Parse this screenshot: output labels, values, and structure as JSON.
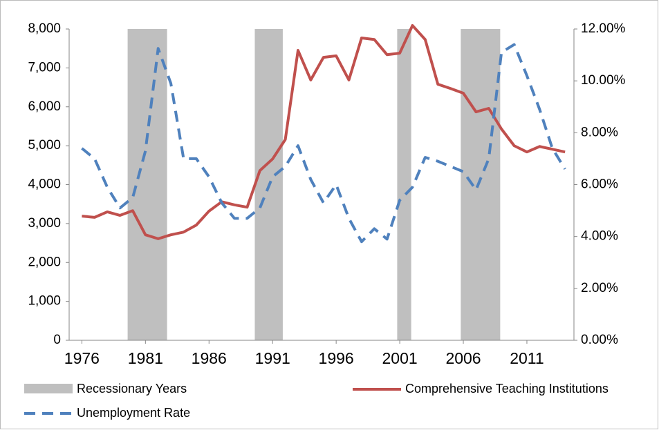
{
  "chart_data": {
    "type": "line",
    "x": [
      1976,
      1977,
      1978,
      1979,
      1980,
      1981,
      1982,
      1983,
      1984,
      1985,
      1986,
      1987,
      1988,
      1989,
      1990,
      1991,
      1992,
      1993,
      1994,
      1995,
      1996,
      1997,
      1998,
      1999,
      2000,
      2001,
      2002,
      2003,
      2004,
      2005,
      2006,
      2007,
      2008,
      2009,
      2010,
      2011,
      2012,
      2013,
      2014
    ],
    "xlim": [
      1975,
      2014.7
    ],
    "xticks": [
      1976,
      1981,
      1986,
      1991,
      1996,
      2001,
      2006,
      2011
    ],
    "ylim": [
      0,
      8000
    ],
    "yticks": [
      0,
      {
        "value": 1000,
        "label": "1,000"
      },
      {
        "value": 2000,
        "label": "2,000"
      },
      {
        "value": 3000,
        "label": "3,000"
      },
      {
        "value": 4000,
        "label": "4,000"
      },
      {
        "value": 5000,
        "label": "5,000"
      },
      {
        "value": 6000,
        "label": "6,000"
      },
      {
        "value": 7000,
        "label": "7,000"
      },
      {
        "value": 8000,
        "label": "8,000"
      }
    ],
    "y2lim": [
      0,
      12
    ],
    "y2ticks": [
      {
        "value": 0,
        "label": "0.00%"
      },
      {
        "value": 2,
        "label": "2.00%"
      },
      {
        "value": 4,
        "label": "4.00%"
      },
      {
        "value": 6,
        "label": "6.00%"
      },
      {
        "value": 8,
        "label": "8.00%"
      },
      {
        "value": 10,
        "label": "10.00%"
      },
      {
        "value": 12,
        "label": "12.00%"
      }
    ],
    "recessions": {
      "name": "Recessionary Years",
      "color": "#bfbfbf",
      "spans": [
        [
          1979.6,
          1982.7
        ],
        [
          1989.6,
          1991.8
        ],
        [
          2000.8,
          2001.9
        ],
        [
          2005.8,
          2008.9
        ]
      ]
    },
    "series": [
      {
        "name": "Comprehensive Teaching Institutions",
        "color": "#c0504d",
        "values": [
          3190,
          3160,
          3300,
          3210,
          3330,
          2710,
          2610,
          2710,
          2780,
          2960,
          3320,
          3560,
          3480,
          3420,
          4360,
          4660,
          5160,
          7450,
          6690,
          7270,
          7310,
          6690,
          7770,
          7730,
          7340,
          7380,
          8090,
          7730,
          6580,
          6470,
          6350,
          5870,
          5960,
          5430,
          5000,
          4840,
          4980,
          4910,
          4840
        ]
      },
      {
        "name": "Unemployment Rate",
        "color": "#4f81bd",
        "axis": "y2",
        "dashed": true,
        "values": [
          7.4,
          7.0,
          5.9,
          5.1,
          5.5,
          7.3,
          11.25,
          9.9,
          7.0,
          7.0,
          6.3,
          5.3,
          4.7,
          4.7,
          5.1,
          6.3,
          6.7,
          7.5,
          6.2,
          5.3,
          6.0,
          4.7,
          3.8,
          4.3,
          3.9,
          5.4,
          5.9,
          7.05,
          6.9,
          6.7,
          6.5,
          5.8,
          7.0,
          11.1,
          11.4,
          10.2,
          8.9,
          7.4,
          6.6
        ]
      }
    ]
  }
}
